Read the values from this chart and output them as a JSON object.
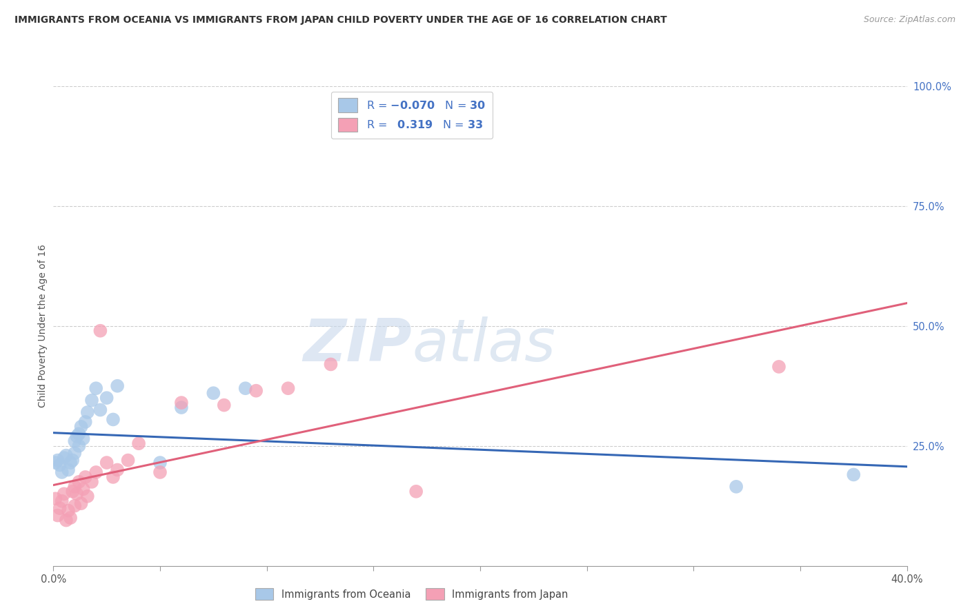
{
  "title": "IMMIGRANTS FROM OCEANIA VS IMMIGRANTS FROM JAPAN CHILD POVERTY UNDER THE AGE OF 16 CORRELATION CHART",
  "source": "Source: ZipAtlas.com",
  "ylabel": "Child Poverty Under the Age of 16",
  "legend_n_oceania": "30",
  "legend_r_japan": "0.319",
  "legend_n_japan": "33",
  "color_oceania": "#a8c8e8",
  "color_japan": "#f4a0b5",
  "line_color_oceania": "#3567b5",
  "line_color_japan": "#e0607a",
  "watermark_zip": "ZIP",
  "watermark_atlas": "atlas",
  "xmin": 0.0,
  "xmax": 0.4,
  "ymin": 0.0,
  "ymax": 1.0,
  "oceania_x": [
    0.001,
    0.002,
    0.003,
    0.004,
    0.005,
    0.006,
    0.007,
    0.008,
    0.009,
    0.01,
    0.01,
    0.011,
    0.012,
    0.012,
    0.013,
    0.014,
    0.015,
    0.016,
    0.018,
    0.02,
    0.022,
    0.025,
    0.028,
    0.03,
    0.05,
    0.06,
    0.075,
    0.09,
    0.32,
    0.375
  ],
  "oceania_y": [
    0.215,
    0.22,
    0.21,
    0.195,
    0.225,
    0.23,
    0.2,
    0.215,
    0.22,
    0.235,
    0.26,
    0.27,
    0.25,
    0.275,
    0.29,
    0.265,
    0.3,
    0.32,
    0.345,
    0.37,
    0.325,
    0.35,
    0.305,
    0.375,
    0.215,
    0.33,
    0.36,
    0.37,
    0.165,
    0.19
  ],
  "japan_x": [
    0.001,
    0.002,
    0.003,
    0.004,
    0.005,
    0.006,
    0.007,
    0.008,
    0.009,
    0.01,
    0.01,
    0.011,
    0.012,
    0.013,
    0.014,
    0.015,
    0.016,
    0.018,
    0.02,
    0.022,
    0.025,
    0.028,
    0.03,
    0.035,
    0.04,
    0.05,
    0.06,
    0.08,
    0.095,
    0.11,
    0.13,
    0.17,
    0.34
  ],
  "japan_y": [
    0.14,
    0.105,
    0.12,
    0.135,
    0.15,
    0.095,
    0.115,
    0.1,
    0.155,
    0.125,
    0.165,
    0.15,
    0.175,
    0.13,
    0.16,
    0.185,
    0.145,
    0.175,
    0.195,
    0.49,
    0.215,
    0.185,
    0.2,
    0.22,
    0.255,
    0.195,
    0.34,
    0.335,
    0.365,
    0.37,
    0.42,
    0.155,
    0.415
  ]
}
